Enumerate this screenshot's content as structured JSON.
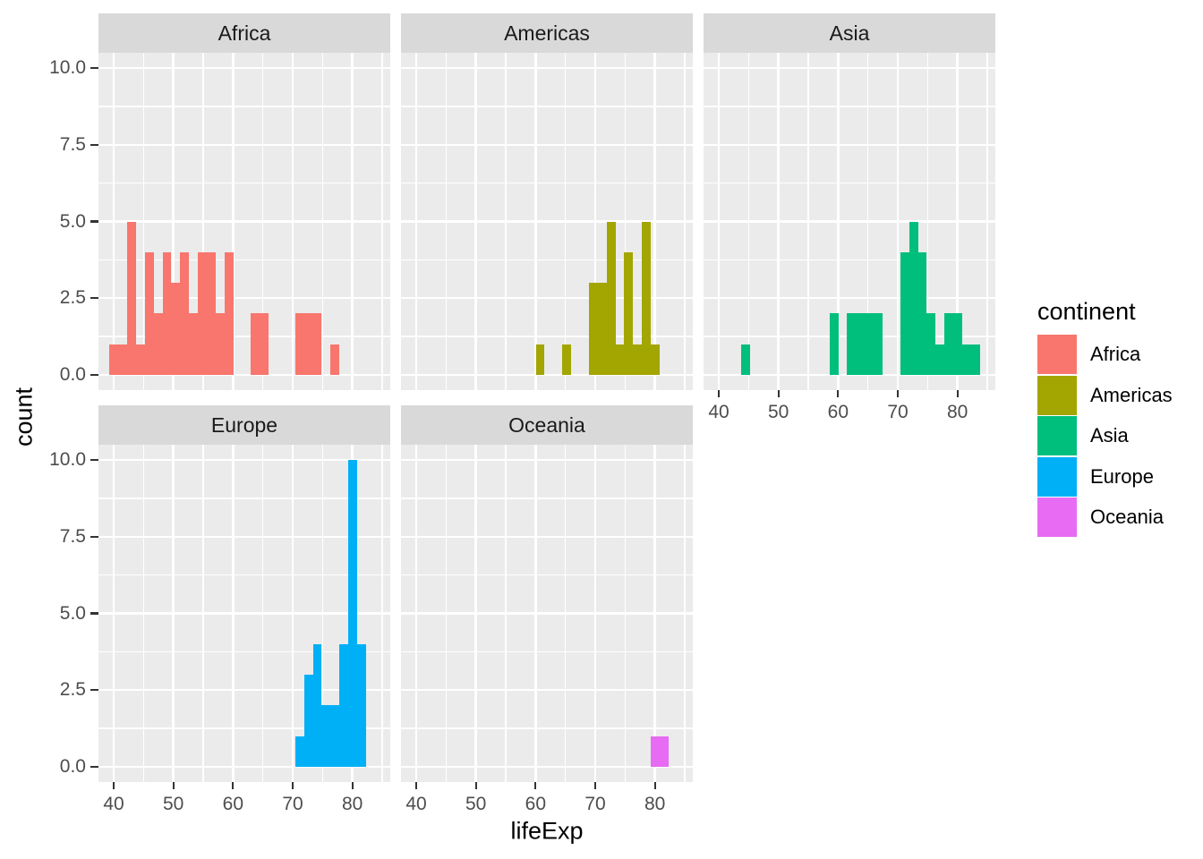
{
  "chart_data": {
    "type": "bar",
    "subtype": "faceted-histogram",
    "title": "",
    "xlabel": "lifeExp",
    "ylabel": "count",
    "x_ticks": [
      "40",
      "50",
      "60",
      "70",
      "80"
    ],
    "x_tick_values": [
      40,
      50,
      60,
      70,
      80
    ],
    "y_ticks": [
      "0.0",
      "2.5",
      "5.0",
      "7.5",
      "10.0"
    ],
    "y_tick_values": [
      0,
      2.5,
      5,
      7.5,
      10
    ],
    "x_minor_values": [
      45,
      55,
      65,
      75,
      85
    ],
    "y_minor_values": [
      1.25,
      3.75,
      6.25,
      8.75
    ],
    "x_domain": [
      37.4,
      86.3
    ],
    "y_domain": [
      -0.5,
      10.5
    ],
    "bin_start": 39.284,
    "bin_width": 1.4824,
    "grid": "on",
    "legend_position": "right",
    "facets": [
      {
        "label": "Africa",
        "color": "#F8766D",
        "counts": [
          1,
          1,
          5,
          1,
          4,
          2,
          4,
          3,
          4,
          2,
          4,
          4,
          2,
          4,
          0,
          0,
          2,
          2,
          0,
          0,
          0,
          2,
          2,
          2,
          0,
          1,
          0,
          0,
          0,
          0
        ]
      },
      {
        "label": "Americas",
        "color": "#A3A500",
        "counts": [
          0,
          0,
          0,
          0,
          0,
          0,
          0,
          0,
          0,
          0,
          0,
          0,
          0,
          0,
          1,
          0,
          0,
          1,
          0,
          0,
          3,
          3,
          5,
          1,
          4,
          1,
          5,
          1,
          0,
          0
        ]
      },
      {
        "label": "Asia",
        "color": "#00BF7D",
        "counts": [
          0,
          0,
          0,
          1,
          0,
          0,
          0,
          0,
          0,
          0,
          0,
          0,
          0,
          2,
          0,
          2,
          2,
          2,
          2,
          0,
          0,
          4,
          5,
          4,
          2,
          1,
          2,
          2,
          1,
          1
        ]
      },
      {
        "label": "Europe",
        "color": "#00B0F6",
        "counts": [
          0,
          0,
          0,
          0,
          0,
          0,
          0,
          0,
          0,
          0,
          0,
          0,
          0,
          0,
          0,
          0,
          0,
          0,
          0,
          0,
          0,
          1,
          3,
          4,
          2,
          2,
          4,
          10,
          4,
          0
        ]
      },
      {
        "label": "Oceania",
        "color": "#E76BF3",
        "counts": [
          0,
          0,
          0,
          0,
          0,
          0,
          0,
          0,
          0,
          0,
          0,
          0,
          0,
          0,
          0,
          0,
          0,
          0,
          0,
          0,
          0,
          0,
          0,
          0,
          0,
          0,
          0,
          1,
          1,
          0
        ]
      }
    ],
    "legend": {
      "title": "continent",
      "items": [
        {
          "label": "Africa",
          "color": "#F8766D"
        },
        {
          "label": "Americas",
          "color": "#A3A500"
        },
        {
          "label": "Asia",
          "color": "#00BF7D"
        },
        {
          "label": "Europe",
          "color": "#00B0F6"
        },
        {
          "label": "Oceania",
          "color": "#E76BF3"
        }
      ]
    },
    "colors": {
      "panel_background": "#EBEBEB",
      "strip_background": "#D9D9D9",
      "gridline": "#FFFFFF",
      "axis_text": "#4D4D4D",
      "strip_text": "#1A1A1A",
      "title_text": "#000000",
      "tick_mark": "#333333",
      "figure_background": "#FFFFFF"
    }
  }
}
